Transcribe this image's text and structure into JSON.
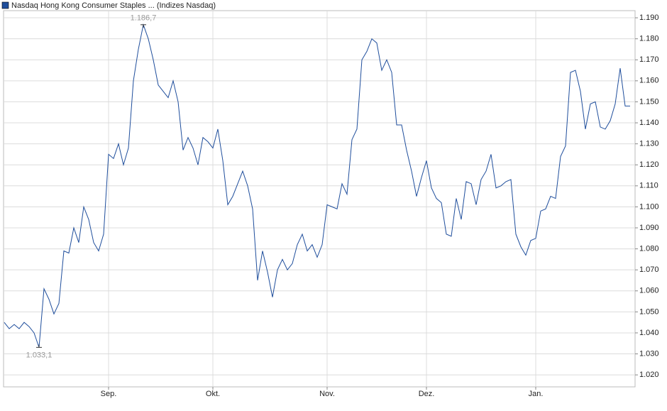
{
  "chart_data": {
    "type": "line",
    "categories": [
      null,
      null,
      null,
      null,
      null,
      null,
      null,
      null,
      null,
      null,
      null,
      null,
      null,
      null,
      null,
      null,
      null,
      null,
      null,
      null,
      null,
      "Sep.",
      null,
      null,
      null,
      null,
      null,
      null,
      null,
      null,
      null,
      null,
      null,
      null,
      null,
      null,
      null,
      null,
      null,
      null,
      null,
      null,
      "Okt.",
      null,
      null,
      null,
      null,
      null,
      null,
      null,
      null,
      null,
      null,
      null,
      null,
      null,
      null,
      null,
      null,
      null,
      null,
      null,
      null,
      null,
      null,
      "Nov.",
      null,
      null,
      null,
      null,
      null,
      null,
      null,
      null,
      null,
      null,
      null,
      null,
      null,
      null,
      null,
      null,
      null,
      null,
      null,
      "Dez.",
      null,
      null,
      null,
      null,
      null,
      null,
      null,
      null,
      null,
      null,
      null,
      null,
      null,
      null,
      null,
      null,
      null,
      null,
      null,
      null,
      null,
      "Jan.",
      null,
      null,
      null,
      null,
      null,
      null,
      null,
      null,
      null,
      null,
      null,
      null,
      null,
      null,
      null,
      null,
      null,
      null,
      null
    ],
    "series": [
      {
        "name": "Nasdaq Hong Kong Consumer Staples ... (Indizes Nasdaq)",
        "color": "#1f4e9c",
        "values": [
          1.045,
          1.042,
          1.044,
          1.042,
          1.045,
          1.043,
          1.04,
          1.0331,
          1.061,
          1.056,
          1.049,
          1.054,
          1.079,
          1.078,
          1.09,
          1.083,
          1.1,
          1.094,
          1.083,
          1.079,
          1.087,
          1.125,
          1.123,
          1.13,
          1.12,
          1.128,
          1.16,
          1.175,
          1.1867,
          1.18,
          1.17,
          1.158,
          1.155,
          1.152,
          1.16,
          1.15,
          1.127,
          1.133,
          1.128,
          1.12,
          1.133,
          1.131,
          1.128,
          1.137,
          1.122,
          1.101,
          1.105,
          1.111,
          1.117,
          1.11,
          1.099,
          1.065,
          1.079,
          1.069,
          1.057,
          1.07,
          1.075,
          1.07,
          1.073,
          1.082,
          1.087,
          1.079,
          1.082,
          1.076,
          1.082,
          1.101,
          1.1,
          1.099,
          1.111,
          1.106,
          1.132,
          1.137,
          1.17,
          1.174,
          1.18,
          1.178,
          1.165,
          1.17,
          1.164,
          1.139,
          1.139,
          1.127,
          1.117,
          1.105,
          1.114,
          1.122,
          1.109,
          1.104,
          1.102,
          1.087,
          1.086,
          1.104,
          1.094,
          1.112,
          1.111,
          1.101,
          1.113,
          1.117,
          1.125,
          1.109,
          1.11,
          1.112,
          1.113,
          1.087,
          1.081,
          1.077,
          1.084,
          1.085,
          1.098,
          1.099,
          1.105,
          1.104,
          1.124,
          1.129,
          1.164,
          1.165,
          1.155,
          1.137,
          1.149,
          1.15,
          1.138,
          1.137,
          1.141,
          1.149,
          1.166,
          1.148,
          1.148
        ]
      }
    ],
    "annotations": [
      {
        "text": "1.186,7",
        "value": 1.1867
      },
      {
        "text": "1.033,1",
        "value": 1.0331
      }
    ],
    "ylim": [
      1.0143,
      1.1934
    ],
    "yticks": [
      {
        "value": 1.02,
        "label": "1.020"
      },
      {
        "value": 1.03,
        "label": "1.030"
      },
      {
        "value": 1.04,
        "label": "1.040"
      },
      {
        "value": 1.05,
        "label": "1.050"
      },
      {
        "value": 1.06,
        "label": "1.060"
      },
      {
        "value": 1.07,
        "label": "1.070"
      },
      {
        "value": 1.08,
        "label": "1.080"
      },
      {
        "value": 1.09,
        "label": "1.090"
      },
      {
        "value": 1.1,
        "label": "1.100"
      },
      {
        "value": 1.11,
        "label": "1.110"
      },
      {
        "value": 1.12,
        "label": "1.120"
      },
      {
        "value": 1.13,
        "label": "1.130"
      },
      {
        "value": 1.14,
        "label": "1.140"
      },
      {
        "value": 1.15,
        "label": "1.150"
      },
      {
        "value": 1.16,
        "label": "1.160"
      },
      {
        "value": 1.17,
        "label": "1.170"
      },
      {
        "value": 1.18,
        "label": "1.180"
      },
      {
        "value": 1.19,
        "label": "1.190"
      }
    ],
    "grid": true
  }
}
